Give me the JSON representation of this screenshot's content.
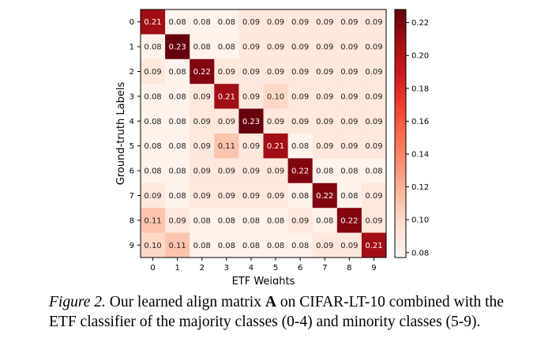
{
  "chart_data": {
    "type": "heatmap",
    "xlabel": "ETF Weights",
    "ylabel": "Ground-truth Labels",
    "x_categories": [
      "0",
      "1",
      "2",
      "3",
      "4",
      "5",
      "6",
      "7",
      "8",
      "9"
    ],
    "y_categories": [
      "0",
      "1",
      "2",
      "3",
      "4",
      "5",
      "6",
      "7",
      "8",
      "9"
    ],
    "values": [
      [
        0.21,
        0.08,
        0.08,
        0.08,
        0.09,
        0.09,
        0.09,
        0.09,
        0.09,
        0.09
      ],
      [
        0.08,
        0.23,
        0.08,
        0.08,
        0.09,
        0.09,
        0.09,
        0.09,
        0.09,
        0.09
      ],
      [
        0.09,
        0.08,
        0.22,
        0.09,
        0.09,
        0.09,
        0.09,
        0.09,
        0.09,
        0.09
      ],
      [
        0.08,
        0.08,
        0.09,
        0.21,
        0.09,
        0.1,
        0.09,
        0.09,
        0.09,
        0.09
      ],
      [
        0.08,
        0.08,
        0.09,
        0.09,
        0.23,
        0.09,
        0.09,
        0.09,
        0.09,
        0.09
      ],
      [
        0.08,
        0.08,
        0.09,
        0.11,
        0.09,
        0.21,
        0.08,
        0.09,
        0.09,
        0.09
      ],
      [
        0.08,
        0.08,
        0.09,
        0.09,
        0.09,
        0.09,
        0.22,
        0.08,
        0.08,
        0.08
      ],
      [
        0.09,
        0.08,
        0.09,
        0.09,
        0.09,
        0.09,
        0.08,
        0.22,
        0.08,
        0.09
      ],
      [
        0.11,
        0.09,
        0.08,
        0.08,
        0.08,
        0.08,
        0.09,
        0.08,
        0.22,
        0.09
      ],
      [
        0.1,
        0.11,
        0.08,
        0.08,
        0.08,
        0.08,
        0.08,
        0.09,
        0.09,
        0.21
      ]
    ],
    "colorbar": {
      "range": [
        0.077,
        0.228
      ],
      "ticks": [
        "0.08",
        "0.10",
        "0.12",
        "0.14",
        "0.16",
        "0.18",
        "0.20",
        "0.22"
      ],
      "colormap": "Reds"
    }
  },
  "caption": {
    "label": "Figure 2.",
    "text_before": " Our learned align matrix ",
    "symbol": "A",
    "text_after": " on CIFAR-LT-10 combined with the ETF classifier of the majority classes (0-4) and minority classes (5-9)."
  }
}
